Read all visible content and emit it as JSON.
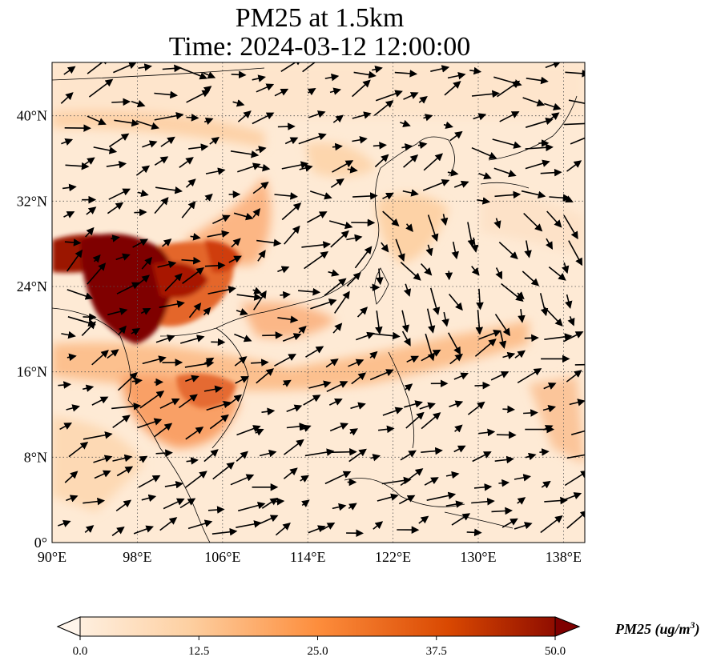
{
  "title": {
    "line1": "PM25 at 1.5km",
    "line2": "Time: 2024-03-12 12:00:00"
  },
  "map": {
    "lon_range": [
      90,
      140
    ],
    "lat_range": [
      0,
      45
    ],
    "lon_ticks": [
      {
        "value": 90,
        "label": "90°E"
      },
      {
        "value": 98,
        "label": "98°E"
      },
      {
        "value": 106,
        "label": "106°E"
      },
      {
        "value": 114,
        "label": "114°E"
      },
      {
        "value": 122,
        "label": "122°E"
      },
      {
        "value": 130,
        "label": "130°E"
      },
      {
        "value": 138,
        "label": "138°E"
      }
    ],
    "lat_ticks": [
      {
        "value": 0,
        "label": "0°"
      },
      {
        "value": 8,
        "label": "8°N"
      },
      {
        "value": 16,
        "label": "16°N"
      },
      {
        "value": 24,
        "label": "24°N"
      },
      {
        "value": 32,
        "label": "32°N"
      },
      {
        "value": 40,
        "label": "40°N"
      }
    ],
    "gridlines": "dotted"
  },
  "colorbar": {
    "min": 0.0,
    "max": 50.0,
    "ticks": [
      "0.0",
      "12.5",
      "25.0",
      "37.5",
      "50.0"
    ],
    "label": "PM25 (ug/m",
    "label_sup": "3",
    "label_end": ")",
    "colors": [
      "#fff5eb",
      "#fdd0a2",
      "#fd8d3c",
      "#d94801",
      "#7f0000"
    ]
  }
}
